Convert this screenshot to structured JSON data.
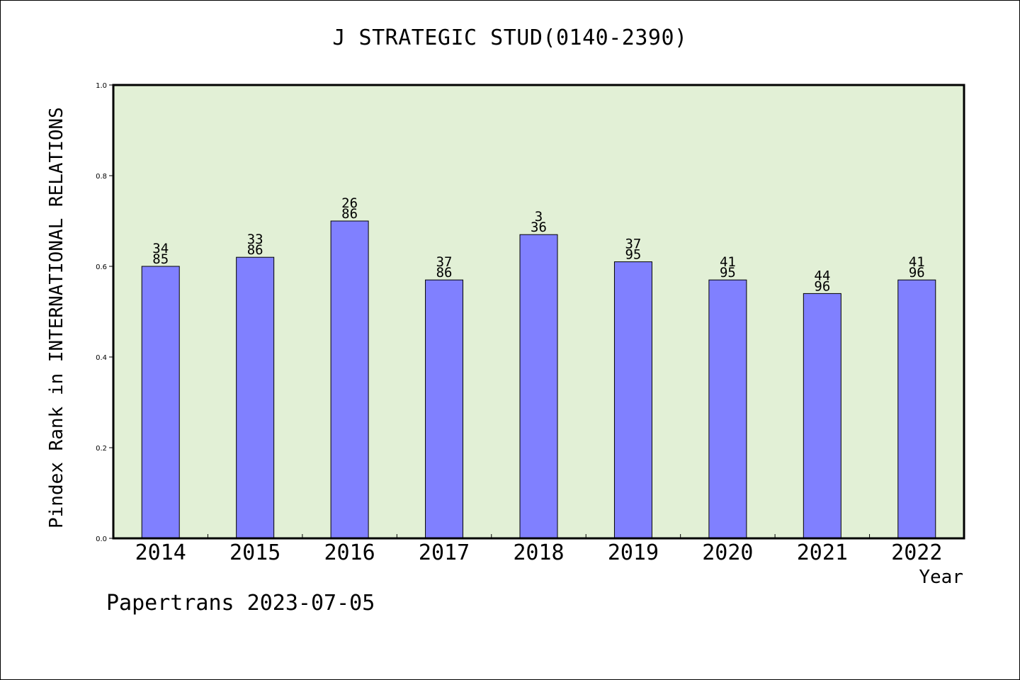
{
  "chart_data": {
    "type": "bar",
    "title": "J STRATEGIC STUD(0140-2390)",
    "xlabel": "Year",
    "ylabel": "Pindex Rank in INTERNATIONAL RELATIONS",
    "ylim": [
      0,
      1.0
    ],
    "yticks": [
      "0.0",
      "0.2",
      "0.4",
      "0.6",
      "0.8",
      "1.0"
    ],
    "categories": [
      "2014",
      "2015",
      "2016",
      "2017",
      "2018",
      "2019",
      "2020",
      "2021",
      "2022"
    ],
    "values": [
      0.6,
      0.62,
      0.7,
      0.57,
      0.67,
      0.61,
      0.57,
      0.54,
      0.57
    ],
    "bar_labels_top": [
      "34",
      "33",
      "26",
      "37",
      "3",
      "37",
      "41",
      "44",
      "41"
    ],
    "bar_labels_bottom": [
      "85",
      "86",
      "86",
      "86",
      "36",
      "95",
      "95",
      "96",
      "96"
    ],
    "grid": false,
    "legend": "none",
    "colors": {
      "bar_fill": "#8080ff",
      "plot_background": "#e2f0d6",
      "axis": "#000000"
    }
  },
  "footer": {
    "note": "Papertrans 2023-07-05"
  }
}
